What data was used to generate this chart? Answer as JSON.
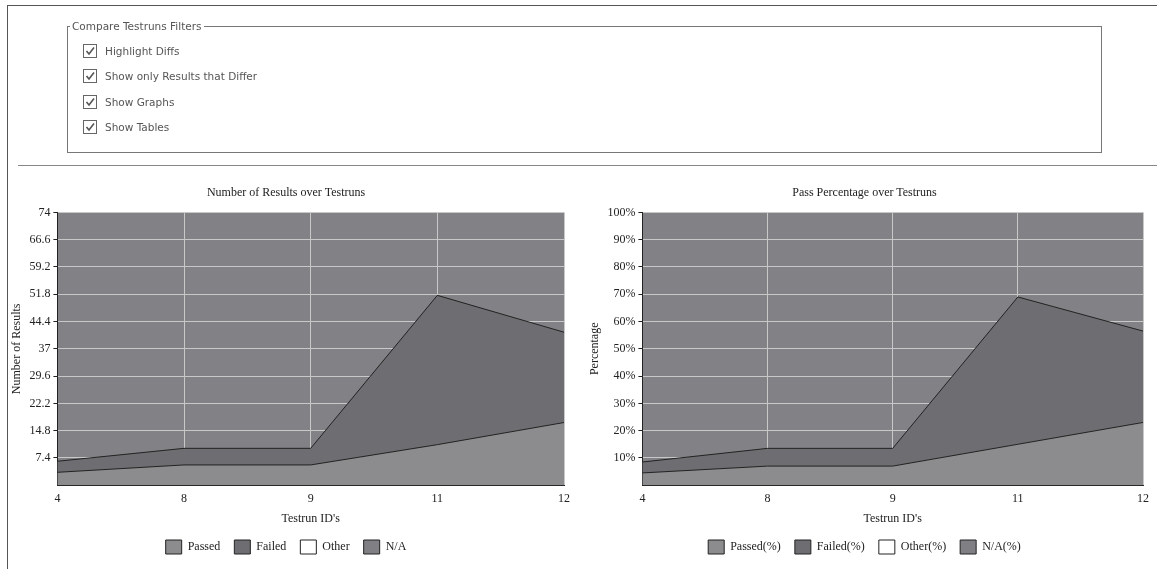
{
  "chart_data": [
    {
      "type": "other",
      "title": "Compare Testruns Filters",
      "annotations": [
        "Highlight Diffs",
        "Show only Results that Differ",
        "Show Graphs",
        "Show Tables"
      ]
    },
    {
      "type": "area",
      "title": "Number of Results over Testruns",
      "xlabel": "Testrun ID's",
      "ylabel": "Number of Results",
      "categories": [
        "4",
        "8",
        "9",
        "11",
        "12"
      ],
      "stacked": true,
      "grid": true,
      "legend": "bottom",
      "ylim": [
        0,
        74
      ],
      "yticks": [
        7.4,
        14.8,
        22.2,
        29.6,
        37,
        44.4,
        51.8,
        59.2,
        66.6,
        74
      ],
      "series": [
        {
          "name": "Passed",
          "color": "#8c8c8e",
          "values": [
            3.5,
            5.5,
            5.5,
            11,
            17
          ]
        },
        {
          "name": "Failed",
          "color": "#6e6e72",
          "values": [
            3,
            4.5,
            4.5,
            40.5,
            24.5
          ]
        },
        {
          "name": "Other",
          "color": "#ffffff",
          "values": [
            null,
            null,
            null,
            null,
            null
          ]
        },
        {
          "name": "N/A",
          "color": "#808084",
          "values": [
            null,
            null,
            null,
            null,
            null
          ]
        }
      ]
    },
    {
      "type": "area",
      "title": "Pass Percentage over Testruns",
      "xlabel": "Testrun ID's",
      "ylabel": "Percentage",
      "categories": [
        "4",
        "8",
        "9",
        "11",
        "12"
      ],
      "stacked": true,
      "grid": true,
      "legend": "bottom",
      "ylim": [
        0,
        100
      ],
      "yticks": [
        {
          "value": 10,
          "label": "10%"
        },
        {
          "value": 20,
          "label": "20%"
        },
        {
          "value": 30,
          "label": "30%"
        },
        {
          "value": 40,
          "label": "40%"
        },
        {
          "value": 50,
          "label": "50%"
        },
        {
          "value": 60,
          "label": "60%"
        },
        {
          "value": 70,
          "label": "70%"
        },
        {
          "value": 80,
          "label": "80%"
        },
        {
          "value": 90,
          "label": "90%"
        },
        {
          "value": 100,
          "label": "100%"
        }
      ],
      "series": [
        {
          "name": "Passed(%)",
          "color": "#8c8c8e",
          "values": [
            4.5,
            7,
            7,
            15,
            23
          ]
        },
        {
          "name": "Failed(%)",
          "color": "#6e6e72",
          "values": [
            4,
            6.5,
            6.5,
            54,
            33.5
          ]
        },
        {
          "name": "Other(%)",
          "color": "#ffffff",
          "values": [
            null,
            null,
            null,
            null,
            null
          ]
        },
        {
          "name": "N/A(%)",
          "color": "#808084",
          "values": [
            null,
            null,
            null,
            null,
            null
          ]
        }
      ]
    }
  ]
}
